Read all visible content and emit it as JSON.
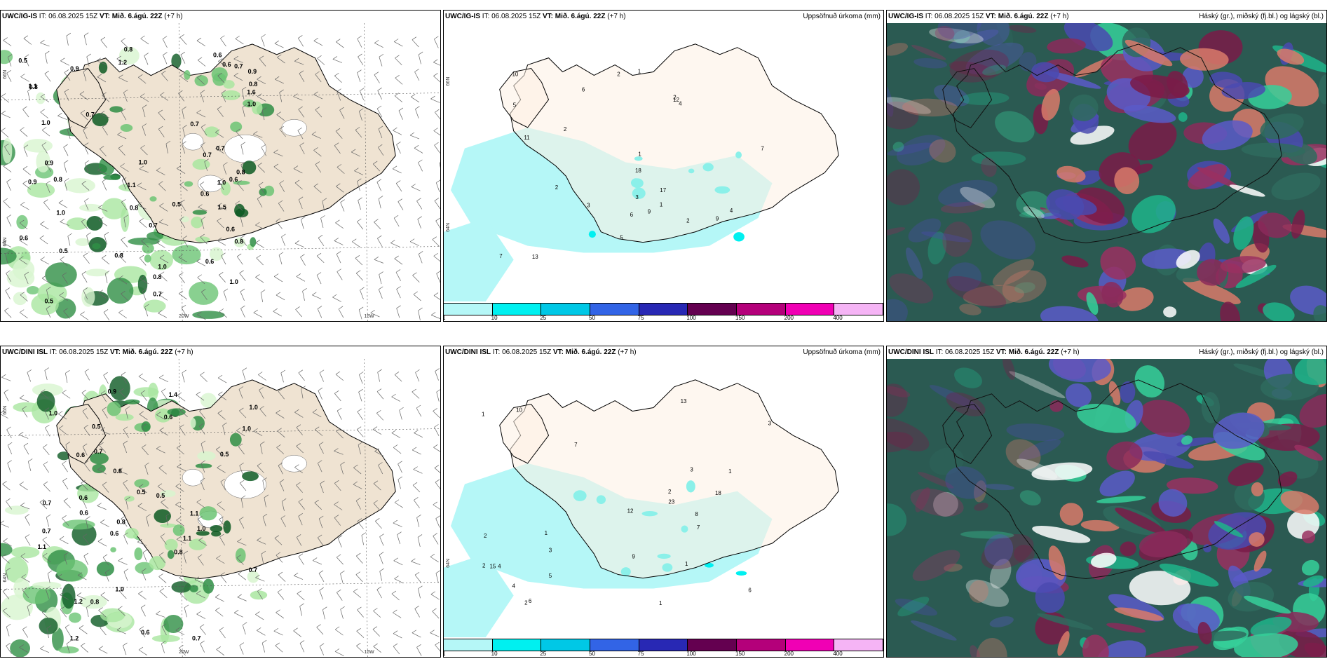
{
  "panels": [
    {
      "model": "UWC/IG-IS",
      "it_label": "IT:",
      "it_value": "06.08.2025 15Z",
      "vt_label": "VT:",
      "vt_value": "Mið. 6.ágú. 22Z",
      "lead": "(+7 h)",
      "right_title": "",
      "type": "wind",
      "values": [
        "0.8",
        "0.5",
        "0.6",
        "0.9",
        "0.8",
        "1.0",
        "0.8",
        "1.0",
        "0.7",
        "0.8",
        "1.0",
        "0.9",
        "0.5",
        "0.7",
        "1.6",
        "0.8",
        "0.7",
        "0.6",
        "1.0",
        "0.8",
        "0.9",
        "0.5",
        "0.8",
        "0.6",
        "0.7",
        "0.6",
        "1.0",
        "0.7",
        "0.9",
        "1.0",
        "0.8",
        "1.1",
        "1.0",
        "0.7",
        "0.8",
        "0.6",
        "1.2",
        "0.7",
        "0.5",
        "1.1",
        "0.6",
        "1.5",
        "0.6"
      ],
      "coords": [
        "66N",
        "20W",
        "15W",
        "64N"
      ]
    },
    {
      "model": "UWC/IG-IS",
      "it_label": "IT:",
      "it_value": "06.08.2025 15Z",
      "vt_label": "VT:",
      "vt_value": "Mið. 6.ágú. 22Z",
      "lead": "(+7 h)",
      "right_title": "Uppsöfnuð úrkoma (mm)",
      "type": "precip",
      "values": [
        "2",
        "1",
        "2",
        "2",
        "1",
        "2",
        "3",
        "4",
        "6",
        "9",
        "7",
        "13",
        "12",
        "5",
        "10",
        "7",
        "11",
        "5",
        "9",
        "6",
        "17",
        "18",
        "3",
        "4",
        "2",
        "1"
      ],
      "coords": [
        "66N",
        "64N"
      ]
    },
    {
      "model": "UWC/IG-IS",
      "it_label": "IT:",
      "it_value": "06.08.2025 15Z",
      "vt_label": "VT:",
      "vt_value": "Mið. 6.ágú. 22Z",
      "lead": "(+7 h)",
      "right_title": "Háský (gr.), miðský (fj.bl.) og lágský (bl.)",
      "type": "cloud"
    },
    {
      "model": "UWC/DINI ISL",
      "it_label": "IT:",
      "it_value": "06.08.2025 15Z",
      "vt_label": "VT:",
      "vt_value": "Mið. 6.ágú. 22Z",
      "lead": "(+7 h)",
      "right_title": "",
      "type": "wind",
      "values": [
        "0.6",
        "1.0",
        "0.5",
        "1.1",
        "1.0",
        "0.6",
        "0.7",
        "0.6",
        "0.5",
        "0.7",
        "1.0",
        "0.8",
        "0.7",
        "1.2",
        "1.1",
        "0.8",
        "0.9",
        "0.6",
        "0.5",
        "0.7",
        "1.0",
        "0.8",
        "1.4",
        "1.1",
        "0.6",
        "0.8",
        "0.7",
        "1.2",
        "1.0",
        "0.5",
        "0.6"
      ],
      "coords": [
        "66N",
        "20W",
        "15W",
        "64N"
      ]
    },
    {
      "model": "UWC/DINI ISL",
      "it_label": "IT:",
      "it_value": "06.08.2025 15Z",
      "vt_label": "VT:",
      "vt_value": "Mið. 6.ágú. 22Z",
      "lead": "(+7 h)",
      "right_title": "Uppsöfnuð úrkoma (mm)",
      "type": "precip",
      "values": [
        "1",
        "2",
        "2",
        "1",
        "1",
        "4",
        "3",
        "10",
        "7",
        "12",
        "13",
        "9",
        "3",
        "5",
        "8",
        "2",
        "4",
        "3",
        "6",
        "23",
        "18",
        "15",
        "6",
        "7",
        "1",
        "2",
        "1"
      ],
      "coords": [
        "64N"
      ]
    },
    {
      "model": "UWC/DINI ISL",
      "it_label": "IT:",
      "it_value": "06.08.2025 15Z",
      "vt_label": "VT:",
      "vt_value": "Mið. 6.ágú. 22Z",
      "lead": "(+7 h)",
      "right_title": "Háský (gr.), miðský (fj.bl.) og lágský (bl.)",
      "type": "cloud"
    }
  ],
  "legend": {
    "labels": [
      "1",
      "10",
      "25",
      "50",
      "75",
      "100",
      "150",
      "200",
      "400"
    ],
    "colors": [
      "#b5f7f7",
      "#00f0f0",
      "#00c8e6",
      "#3264e6",
      "#2828b4",
      "#640050",
      "#b4007a",
      "#f000b4",
      "#f5b4f5"
    ]
  }
}
